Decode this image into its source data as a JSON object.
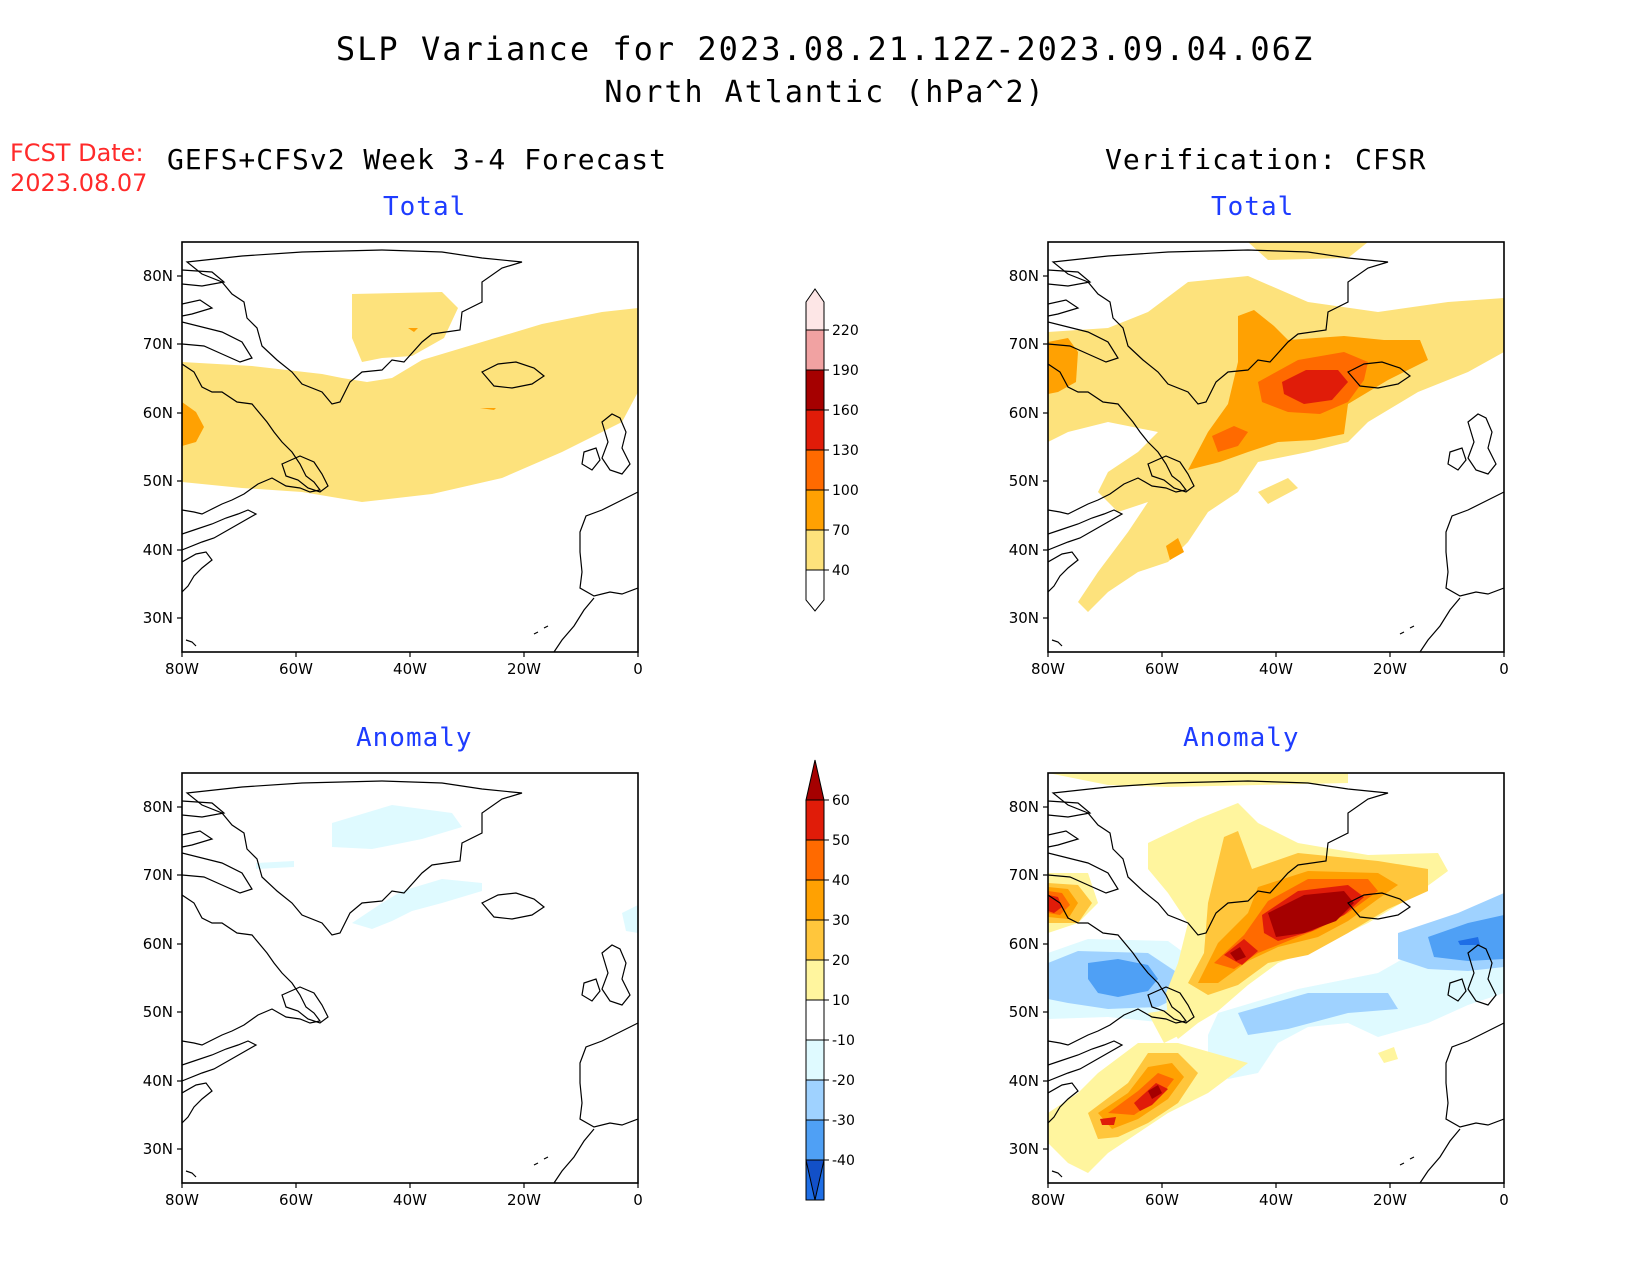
{
  "title_line1": "SLP Variance for 2023.08.21.12Z-2023.09.04.06Z",
  "title_line2": "North Atlantic (hPa^2)",
  "fcst_date_label": "FCST Date:",
  "fcst_date_value": "2023.08.07",
  "left_heading": "GEFS+CFSv2 Week 3-4 Forecast",
  "right_heading": "Verification: CFSR",
  "panels": {
    "fcst_total": {
      "title": "Total"
    },
    "verif_total": {
      "title": "Total"
    },
    "fcst_anomaly": {
      "title": "Anomaly"
    },
    "verif_anomaly": {
      "title": "Anomaly"
    }
  },
  "axes": {
    "lat_labels": [
      "80N",
      "70N",
      "60N",
      "50N",
      "40N",
      "30N"
    ],
    "lon_labels": [
      "80W",
      "60W",
      "40W",
      "20W",
      "0"
    ]
  },
  "colorbar_total": {
    "levels": [
      "40",
      "70",
      "100",
      "130",
      "160",
      "190",
      "220"
    ],
    "colors": [
      "#fde27c",
      "#ffa102",
      "#ff6a00",
      "#e01c09",
      "#a50000",
      "#f1a2a2",
      "#fde6e6"
    ]
  },
  "colorbar_anomaly": {
    "levels": [
      "60",
      "50",
      "40",
      "30",
      "20",
      "10",
      "-10",
      "-20",
      "-30",
      "-40"
    ],
    "colors": [
      "#a50000",
      "#e01c09",
      "#ff6a00",
      "#ffa102",
      "#ffc63c",
      "#fff59e",
      "#ffffff",
      "#dffaff",
      "#9fd2ff",
      "#4fa0f5",
      "#1e6ee6",
      "#1250c8"
    ]
  }
}
